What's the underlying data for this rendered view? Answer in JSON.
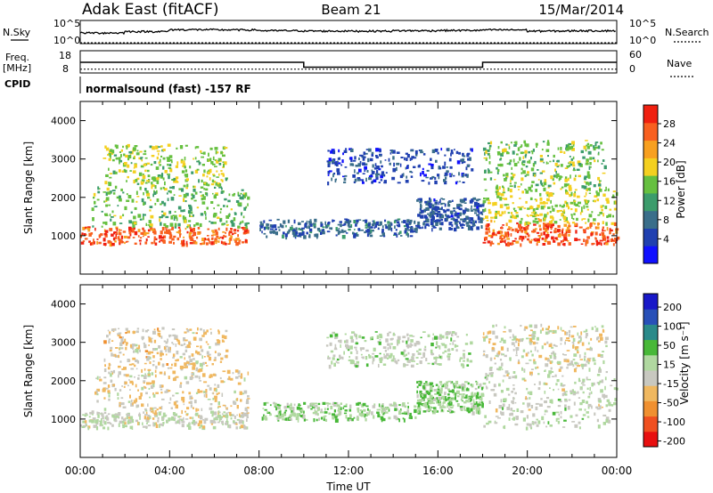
{
  "header": {
    "station": "Adak East (fitACF)",
    "beam": "Beam 21",
    "date": "15/Mar/2014"
  },
  "strip": {
    "nsky_label": "N.Sky",
    "nsearch_label": "N.Search",
    "freq_label": "Freq.",
    "freq_unit": "[MHz]",
    "nave_label": "Nave",
    "cpid_label": "CPID",
    "count_ticks": [
      "10^5",
      "10^0"
    ],
    "freq_ticks": [
      "18",
      "8"
    ],
    "nave_ticks": [
      "60",
      "0"
    ],
    "cpid_text": "normalsound (fast) -157 RF"
  },
  "xaxis": {
    "ticks": [
      "00:00",
      "04:00",
      "08:00",
      "12:00",
      "16:00",
      "20:00",
      "00:00"
    ],
    "label": "Time UT"
  },
  "yaxis": {
    "label": "Slant Range [km]",
    "ticks": [
      "1000",
      "2000",
      "3000",
      "4000"
    ]
  },
  "power_scale": {
    "label": "Power [dB]",
    "ticks": [
      "4",
      "8",
      "12",
      "16",
      "20",
      "24",
      "28"
    ],
    "colors": [
      "#1010ff",
      "#2040b0",
      "#3a6e8a",
      "#3c9c6c",
      "#66c040",
      "#f4d020",
      "#f8a020",
      "#f86020",
      "#f02010"
    ]
  },
  "velocity_scale": {
    "label": "Velocity [m s⁻¹]",
    "ticks": [
      "200",
      "100",
      "50",
      "15",
      "-15",
      "-50",
      "-100",
      "-200"
    ],
    "colors": [
      "#1818c8",
      "#2850b8",
      "#2a8a8a",
      "#48b838",
      "#b0d8a0",
      "#c8c8c0",
      "#f0b860",
      "#f09030",
      "#f05020",
      "#e81010"
    ]
  },
  "chart_data": [
    {
      "type": "line",
      "title": "",
      "x": [
        0,
        2,
        4,
        6,
        8,
        10,
        12,
        14,
        16,
        18,
        20,
        22,
        24
      ],
      "series": [
        {
          "name": "N.Sky",
          "values": [
            200,
            400,
            1000,
            900,
            600,
            500,
            500,
            600,
            700,
            900,
            500,
            600,
            500
          ]
        },
        {
          "name": "N.Search",
          "values": [
            0,
            0,
            0,
            0,
            0,
            0,
            0,
            0,
            0,
            0,
            0,
            0,
            0
          ]
        }
      ],
      "ylim": [
        1,
        100000
      ],
      "yscale": "log"
    },
    {
      "type": "line",
      "x": [
        0,
        10,
        10,
        18,
        18,
        24
      ],
      "series": [
        {
          "name": "Freq.",
          "values": [
            12.8,
            12.8,
            10.6,
            10.6,
            12.8,
            12.8
          ]
        },
        {
          "name": "Nave",
          "values": [
            8,
            8,
            8,
            8,
            8,
            8
          ]
        }
      ],
      "ylim": [
        8,
        18
      ]
    },
    {
      "type": "heatmap",
      "xlabel": "Time UT",
      "ylabel": "Slant Range [km]",
      "colorbar": "Power [dB]",
      "xlim": [
        0,
        24
      ],
      "ylim": [
        0,
        4500
      ],
      "clim": [
        0,
        32
      ],
      "regions": [
        {
          "t0": 0.0,
          "t1": 7.5,
          "r0": 800,
          "r1": 1250,
          "value": 27
        },
        {
          "t0": 0.5,
          "t1": 7.5,
          "r0": 1250,
          "r1": 2300,
          "value": 15
        },
        {
          "t0": 1.0,
          "t1": 6.5,
          "r0": 2300,
          "r1": 3400,
          "value": 17
        },
        {
          "t0": 8.0,
          "t1": 15.0,
          "r0": 1000,
          "r1": 1450,
          "value": 8
        },
        {
          "t0": 11.0,
          "t1": 17.5,
          "r0": 2400,
          "r1": 3300,
          "value": 6
        },
        {
          "t0": 15.0,
          "t1": 18.0,
          "r0": 1200,
          "r1": 2000,
          "value": 7
        },
        {
          "t0": 18.0,
          "t1": 24.0,
          "r0": 800,
          "r1": 1350,
          "value": 27
        },
        {
          "t0": 18.0,
          "t1": 24.0,
          "r0": 1350,
          "r1": 2300,
          "value": 18
        },
        {
          "t0": 18.0,
          "t1": 23.5,
          "r0": 2300,
          "r1": 3500,
          "value": 16
        }
      ]
    },
    {
      "type": "heatmap",
      "xlabel": "Time UT",
      "ylabel": "Slant Range [km]",
      "colorbar": "Velocity [m s⁻¹]",
      "xlim": [
        0,
        24
      ],
      "ylim": [
        0,
        4500
      ],
      "clim": [
        -200,
        200
      ],
      "regions": [
        {
          "t0": 0.0,
          "t1": 7.5,
          "r0": 800,
          "r1": 1200,
          "value": -5
        },
        {
          "t0": 0.5,
          "t1": 7.5,
          "r0": 1200,
          "r1": 2300,
          "value": -30
        },
        {
          "t0": 1.0,
          "t1": 6.5,
          "r0": 2300,
          "r1": 3400,
          "value": -40
        },
        {
          "t0": 8.0,
          "t1": 15.0,
          "r0": 1000,
          "r1": 1450,
          "value": 30
        },
        {
          "t0": 11.0,
          "t1": 17.5,
          "r0": 2400,
          "r1": 3300,
          "value": 5
        },
        {
          "t0": 15.0,
          "t1": 18.0,
          "r0": 1200,
          "r1": 2000,
          "value": 35
        },
        {
          "t0": 18.0,
          "t1": 24.0,
          "r0": 800,
          "r1": 2300,
          "value": 0
        },
        {
          "t0": 18.0,
          "t1": 23.5,
          "r0": 2300,
          "r1": 3500,
          "value": -20
        }
      ]
    }
  ]
}
